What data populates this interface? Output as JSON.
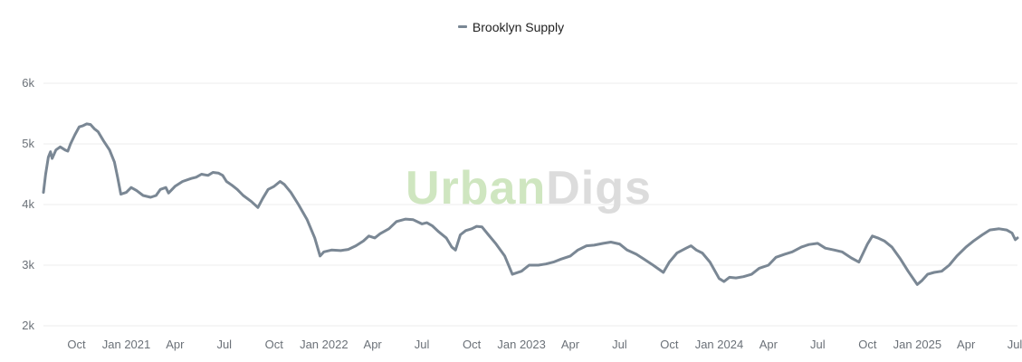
{
  "legend": {
    "label": "Brooklyn Supply",
    "icon": "line-swatch-icon"
  },
  "watermark": {
    "part1": "Urban",
    "part2": "Digs"
  },
  "colors": {
    "series": "#7a8794",
    "grid": "#ececec",
    "axis_text": "#6b7178",
    "wm_green": "#cfe6c0",
    "wm_gray": "#dcdcdc"
  },
  "chart_data": {
    "type": "line",
    "title": "",
    "xlabel": "",
    "ylabel": "",
    "grid": true,
    "legend_position": "top-center",
    "ylim": [
      2000,
      6000
    ],
    "xlim": [
      "2020-08-01",
      "2025-07-05"
    ],
    "y_ticks": [
      {
        "value": 2000,
        "label": "2k"
      },
      {
        "value": 3000,
        "label": "3k"
      },
      {
        "value": 4000,
        "label": "4k"
      },
      {
        "value": 5000,
        "label": "5k"
      },
      {
        "value": 6000,
        "label": "6k"
      }
    ],
    "x_ticks": [
      {
        "date": "2020-10-01",
        "label": "Oct"
      },
      {
        "date": "2021-01-01",
        "label": "Jan 2021"
      },
      {
        "date": "2021-04-01",
        "label": "Apr"
      },
      {
        "date": "2021-07-01",
        "label": "Jul"
      },
      {
        "date": "2021-10-01",
        "label": "Oct"
      },
      {
        "date": "2022-01-01",
        "label": "Jan 2022"
      },
      {
        "date": "2022-04-01",
        "label": "Apr"
      },
      {
        "date": "2022-07-01",
        "label": "Jul"
      },
      {
        "date": "2022-10-01",
        "label": "Oct"
      },
      {
        "date": "2023-01-01",
        "label": "Jan 2023"
      },
      {
        "date": "2023-04-01",
        "label": "Apr"
      },
      {
        "date": "2023-07-01",
        "label": "Jul"
      },
      {
        "date": "2023-10-01",
        "label": "Oct"
      },
      {
        "date": "2024-01-01",
        "label": "Jan 2024"
      },
      {
        "date": "2024-04-01",
        "label": "Apr"
      },
      {
        "date": "2024-07-01",
        "label": "Jul"
      },
      {
        "date": "2024-10-01",
        "label": "Oct"
      },
      {
        "date": "2025-01-01",
        "label": "Jan 2025"
      },
      {
        "date": "2025-04-01",
        "label": "Apr"
      },
      {
        "date": "2025-07-01",
        "label": "Jul"
      }
    ],
    "series": [
      {
        "name": "Brooklyn Supply",
        "points": [
          [
            "2020-08-01",
            4200
          ],
          [
            "2020-08-05",
            4500
          ],
          [
            "2020-08-10",
            4780
          ],
          [
            "2020-08-14",
            4870
          ],
          [
            "2020-08-17",
            4760
          ],
          [
            "2020-08-24",
            4900
          ],
          [
            "2020-09-01",
            4950
          ],
          [
            "2020-09-10",
            4900
          ],
          [
            "2020-09-15",
            4880
          ],
          [
            "2020-09-20",
            5000
          ],
          [
            "2020-09-28",
            5150
          ],
          [
            "2020-10-06",
            5280
          ],
          [
            "2020-10-13",
            5300
          ],
          [
            "2020-10-20",
            5330
          ],
          [
            "2020-10-27",
            5320
          ],
          [
            "2020-11-03",
            5250
          ],
          [
            "2020-11-10",
            5200
          ],
          [
            "2020-11-20",
            5050
          ],
          [
            "2020-12-01",
            4900
          ],
          [
            "2020-12-10",
            4700
          ],
          [
            "2020-12-16",
            4450
          ],
          [
            "2020-12-22",
            4170
          ],
          [
            "2021-01-01",
            4200
          ],
          [
            "2021-01-10",
            4280
          ],
          [
            "2021-01-20",
            4230
          ],
          [
            "2021-02-01",
            4150
          ],
          [
            "2021-02-15",
            4120
          ],
          [
            "2021-02-25",
            4150
          ],
          [
            "2021-03-05",
            4250
          ],
          [
            "2021-03-15",
            4280
          ],
          [
            "2021-03-20",
            4190
          ],
          [
            "2021-04-01",
            4300
          ],
          [
            "2021-04-15",
            4380
          ],
          [
            "2021-05-01",
            4430
          ],
          [
            "2021-05-10",
            4450
          ],
          [
            "2021-05-20",
            4500
          ],
          [
            "2021-06-01",
            4480
          ],
          [
            "2021-06-10",
            4530
          ],
          [
            "2021-06-20",
            4520
          ],
          [
            "2021-06-28",
            4480
          ],
          [
            "2021-07-05",
            4380
          ],
          [
            "2021-07-15",
            4320
          ],
          [
            "2021-07-25",
            4250
          ],
          [
            "2021-08-05",
            4150
          ],
          [
            "2021-08-20",
            4050
          ],
          [
            "2021-09-01",
            3950
          ],
          [
            "2021-09-10",
            4100
          ],
          [
            "2021-09-20",
            4250
          ],
          [
            "2021-10-01",
            4300
          ],
          [
            "2021-10-12",
            4380
          ],
          [
            "2021-10-20",
            4330
          ],
          [
            "2021-11-01",
            4200
          ],
          [
            "2021-11-15",
            4000
          ],
          [
            "2021-12-01",
            3750
          ],
          [
            "2021-12-15",
            3450
          ],
          [
            "2021-12-25",
            3150
          ],
          [
            "2022-01-01",
            3220
          ],
          [
            "2022-01-15",
            3250
          ],
          [
            "2022-02-01",
            3240
          ],
          [
            "2022-02-15",
            3260
          ],
          [
            "2022-03-01",
            3320
          ],
          [
            "2022-03-15",
            3400
          ],
          [
            "2022-03-25",
            3480
          ],
          [
            "2022-04-05",
            3450
          ],
          [
            "2022-04-15",
            3520
          ],
          [
            "2022-05-01",
            3600
          ],
          [
            "2022-05-15",
            3720
          ],
          [
            "2022-06-01",
            3760
          ],
          [
            "2022-06-15",
            3750
          ],
          [
            "2022-07-01",
            3680
          ],
          [
            "2022-07-10",
            3700
          ],
          [
            "2022-07-20",
            3650
          ],
          [
            "2022-08-01",
            3550
          ],
          [
            "2022-08-15",
            3450
          ],
          [
            "2022-08-25",
            3300
          ],
          [
            "2022-09-01",
            3250
          ],
          [
            "2022-09-10",
            3500
          ],
          [
            "2022-09-20",
            3570
          ],
          [
            "2022-10-01",
            3600
          ],
          [
            "2022-10-10",
            3640
          ],
          [
            "2022-10-20",
            3630
          ],
          [
            "2022-11-01",
            3500
          ],
          [
            "2022-11-15",
            3350
          ],
          [
            "2022-12-01",
            3150
          ],
          [
            "2022-12-15",
            2850
          ],
          [
            "2023-01-01",
            2900
          ],
          [
            "2023-01-15",
            3000
          ],
          [
            "2023-02-01",
            3000
          ],
          [
            "2023-02-15",
            3020
          ],
          [
            "2023-03-01",
            3050
          ],
          [
            "2023-03-15",
            3100
          ],
          [
            "2023-04-01",
            3150
          ],
          [
            "2023-04-15",
            3250
          ],
          [
            "2023-05-01",
            3320
          ],
          [
            "2023-05-15",
            3330
          ],
          [
            "2023-06-01",
            3360
          ],
          [
            "2023-06-15",
            3380
          ],
          [
            "2023-07-01",
            3350
          ],
          [
            "2023-07-15",
            3250
          ],
          [
            "2023-08-01",
            3180
          ],
          [
            "2023-08-15",
            3100
          ],
          [
            "2023-09-01",
            3000
          ],
          [
            "2023-09-20",
            2880
          ],
          [
            "2023-10-01",
            3050
          ],
          [
            "2023-10-15",
            3200
          ],
          [
            "2023-11-01",
            3280
          ],
          [
            "2023-11-10",
            3320
          ],
          [
            "2023-11-20",
            3250
          ],
          [
            "2023-12-01",
            3200
          ],
          [
            "2023-12-15",
            3050
          ],
          [
            "2024-01-01",
            2780
          ],
          [
            "2024-01-10",
            2730
          ],
          [
            "2024-01-20",
            2800
          ],
          [
            "2024-02-01",
            2790
          ],
          [
            "2024-02-15",
            2810
          ],
          [
            "2024-03-01",
            2850
          ],
          [
            "2024-03-15",
            2950
          ],
          [
            "2024-04-01",
            3000
          ],
          [
            "2024-04-15",
            3130
          ],
          [
            "2024-05-01",
            3180
          ],
          [
            "2024-05-15",
            3220
          ],
          [
            "2024-06-01",
            3300
          ],
          [
            "2024-06-15",
            3340
          ],
          [
            "2024-07-01",
            3360
          ],
          [
            "2024-07-15",
            3280
          ],
          [
            "2024-08-01",
            3250
          ],
          [
            "2024-08-15",
            3220
          ],
          [
            "2024-09-01",
            3120
          ],
          [
            "2024-09-15",
            3050
          ],
          [
            "2024-10-01",
            3350
          ],
          [
            "2024-10-10",
            3480
          ],
          [
            "2024-10-20",
            3450
          ],
          [
            "2024-11-01",
            3400
          ],
          [
            "2024-11-15",
            3300
          ],
          [
            "2024-12-01",
            3100
          ],
          [
            "2024-12-15",
            2900
          ],
          [
            "2025-01-01",
            2680
          ],
          [
            "2025-01-10",
            2750
          ],
          [
            "2025-01-20",
            2850
          ],
          [
            "2025-02-01",
            2880
          ],
          [
            "2025-02-15",
            2900
          ],
          [
            "2025-03-01",
            3000
          ],
          [
            "2025-03-15",
            3150
          ],
          [
            "2025-04-01",
            3300
          ],
          [
            "2025-04-15",
            3400
          ],
          [
            "2025-05-01",
            3500
          ],
          [
            "2025-05-15",
            3580
          ],
          [
            "2025-06-01",
            3600
          ],
          [
            "2025-06-15",
            3580
          ],
          [
            "2025-06-25",
            3530
          ],
          [
            "2025-07-01",
            3420
          ],
          [
            "2025-07-05",
            3450
          ]
        ]
      }
    ]
  }
}
